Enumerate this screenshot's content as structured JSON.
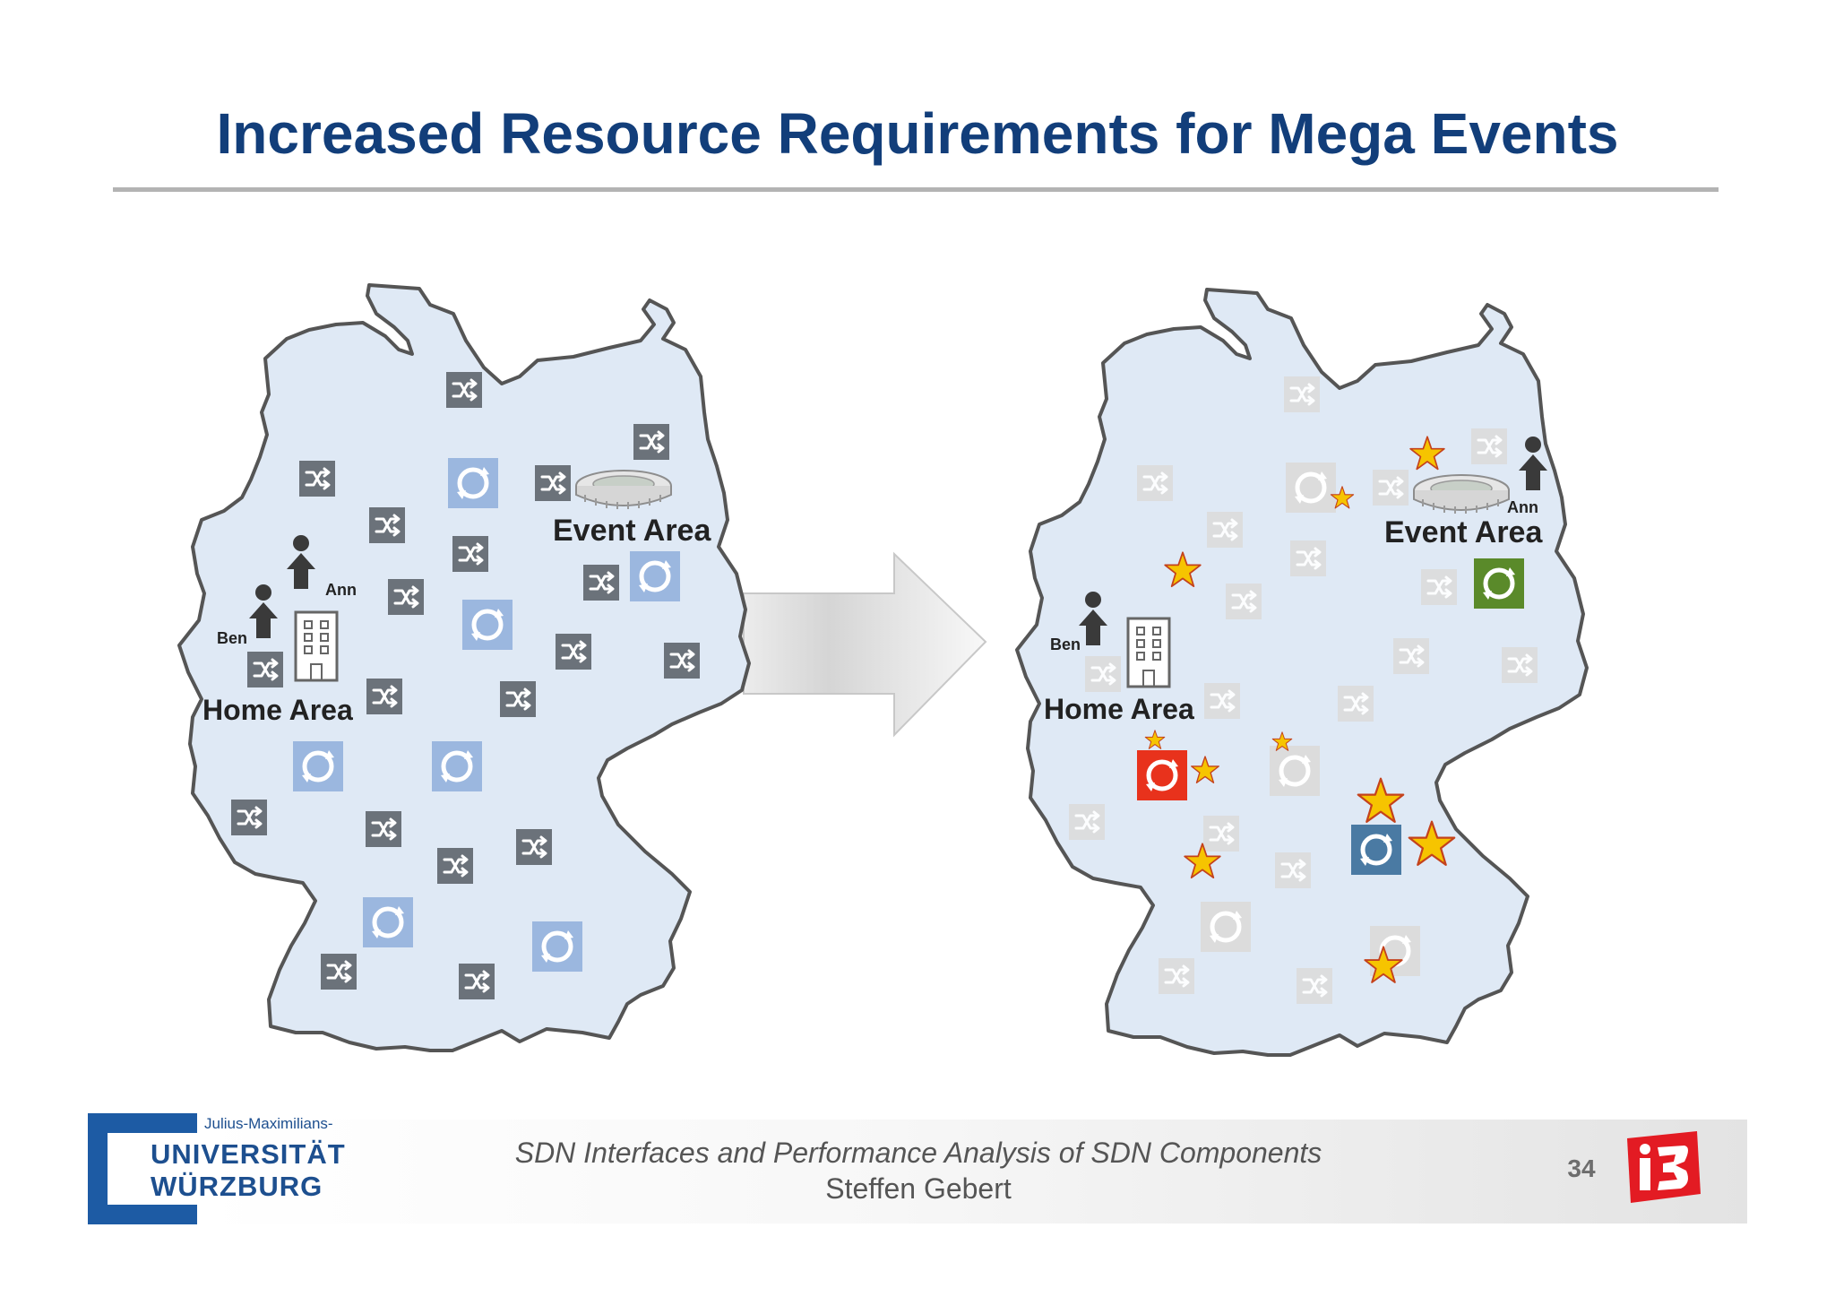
{
  "slide": {
    "title": "Increased Resource Requirements for Mega Events"
  },
  "left_map": {
    "event_area_label": "Event Area",
    "home_area_label": "Home Area",
    "person_ann": "Ann",
    "person_ben": "Ben"
  },
  "right_map": {
    "event_area_label": "Event Area",
    "home_area_label": "Home Area",
    "person_ann": "Ann",
    "person_ben": "Ben"
  },
  "colors": {
    "map_fill": "#dfe9f5",
    "map_stroke": "#555555",
    "switch_dark": "#6b727a",
    "controller_blue": "#9bb7df",
    "controller_red": "#e8321c",
    "controller_steel": "#4a7aa3",
    "controller_green": "#5a8a2a",
    "star": "#f6c400",
    "title": "#123e7a"
  },
  "footer": {
    "title": "SDN Interfaces and Performance Analysis of SDN Components",
    "author": "Steffen Gebert",
    "page_number": "34",
    "university_small": "Julius-Maximilians-",
    "university_line1": "UNIVERSITÄT",
    "university_line2": "WÜRZBURG",
    "lab_logo": "i3"
  }
}
